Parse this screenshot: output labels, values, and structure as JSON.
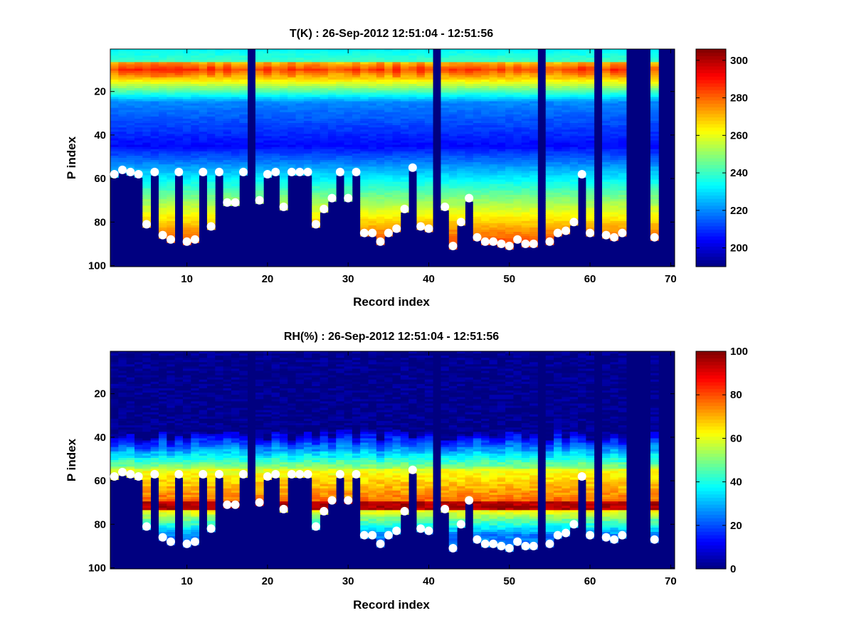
{
  "figure": {
    "background": "#ffffff"
  },
  "chart_data": [
    {
      "type": "heatmap",
      "title": "T(K) : 26-Sep-2012 12:51:04 - 12:51:56",
      "xlabel": "Record index",
      "ylabel": "P index",
      "xlim": [
        0.5,
        70.5
      ],
      "ylim": [
        0.5,
        100.5
      ],
      "y_reversed": true,
      "xticks": [
        10,
        20,
        30,
        40,
        50,
        60,
        70
      ],
      "yticks": [
        20,
        40,
        60,
        80,
        100
      ],
      "colormap": "jet",
      "colorbar": {
        "range": [
          190,
          306
        ],
        "ticks": [
          200,
          220,
          240,
          260,
          280,
          300
        ]
      },
      "fill_value": 190,
      "missing_records": [
        18,
        41,
        54,
        61,
        65,
        66,
        67,
        69,
        70
      ],
      "profile_model": {
        "description": "value by P index per record",
        "surface_min_p": 7,
        "peak_p": 10,
        "peak_value": 285,
        "mid_p": 25,
        "mid_value": 220,
        "cold_p": 45,
        "cold_value": 205,
        "lower_p": 70,
        "lower_value": 250,
        "bottom_value": 282
      },
      "markers": {
        "color": "#ffffff",
        "points": [
          [
            1,
            58
          ],
          [
            2,
            56
          ],
          [
            3,
            57
          ],
          [
            4,
            58
          ],
          [
            5,
            81
          ],
          [
            6,
            57
          ],
          [
            7,
            86
          ],
          [
            8,
            88
          ],
          [
            9,
            57
          ],
          [
            10,
            89
          ],
          [
            11,
            88
          ],
          [
            12,
            57
          ],
          [
            13,
            82
          ],
          [
            14,
            57
          ],
          [
            15,
            71
          ],
          [
            16,
            71
          ],
          [
            17,
            57
          ],
          [
            19,
            70
          ],
          [
            20,
            58
          ],
          [
            21,
            57
          ],
          [
            22,
            73
          ],
          [
            23,
            57
          ],
          [
            24,
            57
          ],
          [
            25,
            57
          ],
          [
            26,
            81
          ],
          [
            27,
            74
          ],
          [
            28,
            69
          ],
          [
            29,
            57
          ],
          [
            30,
            69
          ],
          [
            31,
            57
          ],
          [
            32,
            85
          ],
          [
            33,
            85
          ],
          [
            34,
            89
          ],
          [
            35,
            85
          ],
          [
            36,
            83
          ],
          [
            37,
            74
          ],
          [
            38,
            55
          ],
          [
            39,
            82
          ],
          [
            40,
            83
          ],
          [
            42,
            73
          ],
          [
            43,
            91
          ],
          [
            44,
            80
          ],
          [
            45,
            69
          ],
          [
            46,
            87
          ],
          [
            47,
            89
          ],
          [
            48,
            89
          ],
          [
            49,
            90
          ],
          [
            50,
            91
          ],
          [
            51,
            88
          ],
          [
            52,
            90
          ],
          [
            53,
            90
          ],
          [
            55,
            89
          ],
          [
            56,
            85
          ],
          [
            57,
            84
          ],
          [
            58,
            80
          ],
          [
            59,
            58
          ],
          [
            60,
            85
          ],
          [
            62,
            86
          ],
          [
            63,
            87
          ],
          [
            64,
            85
          ],
          [
            68,
            87
          ]
        ]
      }
    },
    {
      "type": "heatmap",
      "title": "RH(%) : 26-Sep-2012 12:51:04 - 12:51:56",
      "xlabel": "Record index",
      "ylabel": "P index",
      "xlim": [
        0.5,
        70.5
      ],
      "ylim": [
        0.5,
        100.5
      ],
      "y_reversed": true,
      "xticks": [
        10,
        20,
        30,
        40,
        50,
        60,
        70
      ],
      "yticks": [
        20,
        40,
        60,
        80,
        100
      ],
      "colormap": "jet",
      "colorbar": {
        "range": [
          0,
          100
        ],
        "ticks": [
          0,
          20,
          40,
          60,
          80,
          100
        ]
      },
      "fill_value": 0,
      "missing_records": [
        18,
        41,
        54,
        61,
        65,
        66,
        67,
        69,
        70
      ],
      "profile_model": {
        "description": "value by P index per record",
        "dry_above_p": 38,
        "moist_start_p": 55,
        "moist_value": 70,
        "peak_p": 72,
        "peak_value": 95,
        "lower_value": 25
      },
      "markers": {
        "color": "#ffffff",
        "points": [
          [
            1,
            58
          ],
          [
            2,
            56
          ],
          [
            3,
            57
          ],
          [
            4,
            58
          ],
          [
            5,
            81
          ],
          [
            6,
            57
          ],
          [
            7,
            86
          ],
          [
            8,
            88
          ],
          [
            9,
            57
          ],
          [
            10,
            89
          ],
          [
            11,
            88
          ],
          [
            12,
            57
          ],
          [
            13,
            82
          ],
          [
            14,
            57
          ],
          [
            15,
            71
          ],
          [
            16,
            71
          ],
          [
            17,
            57
          ],
          [
            19,
            70
          ],
          [
            20,
            58
          ],
          [
            21,
            57
          ],
          [
            22,
            73
          ],
          [
            23,
            57
          ],
          [
            24,
            57
          ],
          [
            25,
            57
          ],
          [
            26,
            81
          ],
          [
            27,
            74
          ],
          [
            28,
            69
          ],
          [
            29,
            57
          ],
          [
            30,
            69
          ],
          [
            31,
            57
          ],
          [
            32,
            85
          ],
          [
            33,
            85
          ],
          [
            34,
            89
          ],
          [
            35,
            85
          ],
          [
            36,
            83
          ],
          [
            37,
            74
          ],
          [
            38,
            55
          ],
          [
            39,
            82
          ],
          [
            40,
            83
          ],
          [
            42,
            73
          ],
          [
            43,
            91
          ],
          [
            44,
            80
          ],
          [
            45,
            69
          ],
          [
            46,
            87
          ],
          [
            47,
            89
          ],
          [
            48,
            89
          ],
          [
            49,
            90
          ],
          [
            50,
            91
          ],
          [
            51,
            88
          ],
          [
            52,
            90
          ],
          [
            53,
            90
          ],
          [
            55,
            89
          ],
          [
            56,
            85
          ],
          [
            57,
            84
          ],
          [
            58,
            80
          ],
          [
            59,
            58
          ],
          [
            60,
            85
          ],
          [
            62,
            86
          ],
          [
            63,
            87
          ],
          [
            64,
            85
          ],
          [
            68,
            87
          ]
        ]
      }
    }
  ]
}
